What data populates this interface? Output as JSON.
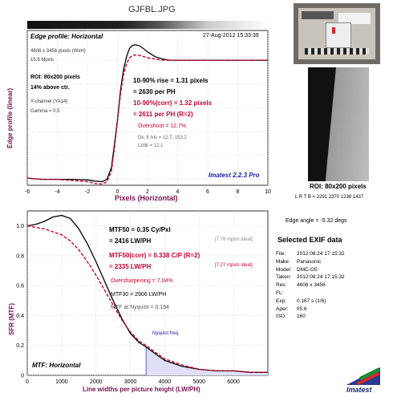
{
  "file_title": "GJFBL.JPG",
  "edge": {
    "title": "Edge profile: Horizontal",
    "timestamp": "27-Aug-2012 15:33:39",
    "dims": "4608 x 3456 pixels (WxH)",
    "mpxls": "15.9 Mpxls",
    "roi": "ROI: 80x200 pixels",
    "above": "14% above ctr.",
    "channel": "Y-channel  (YA14)",
    "gamma": "Gamma = 0.5",
    "rise1": "10-90% rise = 1.31 pixels",
    "rise2": "= 2630 per PH",
    "corr1": "10-90%(corr) = 1.32 pixels",
    "corr2": "= 2611 per PH  (R=2)",
    "overshoot": "Overshoot = 12.7%",
    "dk": "Dk, lt lvls = 12.7, 153.2",
    "ltdk": "Lt/dk = 12.1",
    "brand": "Imatest 2.2.3 Pro",
    "ylabel": "Edge profile (linear)",
    "xlabel": "Pixels (Horizontal)"
  },
  "mtf": {
    "mtf50a": "MTF50 = 0.35 Cy/Pxl",
    "mtf50b": "= 2416 LW/PH",
    "ideal1": "[7.78 mpxls ideal]",
    "corr_a": "MTF50(corr) = 0.338 C/P  (R=2)",
    "corr_b": "= 2335 LW/PH",
    "ideal2": "[7.27 mpxls ideal]",
    "oversharp": "Oversharpening = 7.04%",
    "mtf30": "MTF30 = 2906 LW/PH",
    "nyq_val": "MTF at Nyquist = 0.194",
    "nyq_label": "Nyquist freq.",
    "title": "MTF: Horizontal",
    "ylabel": "SFR (MTF)",
    "xlabel": "Line widths per picture height (LW/PH)"
  },
  "right": {
    "roi": "ROI: 80x200 pixels",
    "lrtb": "L R T B = 2291 2370  1238 1437",
    "angle": "Edge angle = -5.32 degs",
    "exif_title": "Selected EXIF data",
    "exif": [
      {
        "k": "File:",
        "v": "2012:08:24 17:15:32"
      },
      {
        "k": "Make:",
        "v": "Panasonic"
      },
      {
        "k": "Model:",
        "v": "DMC-G5"
      },
      {
        "k": "Taken:",
        "v": "2012:08:24 17:15:32"
      },
      {
        "k": "Res:",
        "v": "4608 x 3456"
      },
      {
        "k": "FL:",
        "v": ""
      },
      {
        "k": "Exp:",
        "v": "0.167 s  (1/6)"
      },
      {
        "k": "Aper:",
        "v": "f/5.6"
      },
      {
        "k": "ISO:",
        "v": "160"
      }
    ],
    "logo": "Imatest"
  },
  "chart_data": [
    {
      "type": "line",
      "title": "Edge profile: Horizontal",
      "xlabel": "Pixels (Horizontal)",
      "ylabel": "Edge profile (linear)",
      "xlim": [
        -6,
        10
      ],
      "ylim": [
        -0.05,
        1.25
      ],
      "xticks": [
        -6,
        -4,
        -2,
        0,
        2,
        4,
        6,
        8,
        10
      ],
      "grid": true,
      "series": [
        {
          "color": "#000000",
          "x": [
            -6,
            -5,
            -4,
            -3,
            -2,
            -1.5,
            -1,
            -0.7,
            -0.4,
            -0.2,
            0,
            0.2,
            0.4,
            0.6,
            0.8,
            1.0,
            1.2,
            1.5,
            2,
            2.5,
            3,
            3.5,
            4,
            5,
            6,
            7,
            8,
            9,
            10
          ],
          "y": [
            0.01,
            0.0,
            0.0,
            0.0,
            -0.005,
            -0.015,
            -0.02,
            0.0,
            0.1,
            0.3,
            0.5,
            0.75,
            0.92,
            1.03,
            1.1,
            1.125,
            1.13,
            1.12,
            1.07,
            1.03,
            1.01,
            1.0,
            1.0,
            1.0,
            1.0,
            1.0,
            1.0,
            1.0,
            1.0
          ]
        },
        {
          "color": "#cc0033",
          "x": [
            -6,
            -5,
            -4,
            -3,
            -2,
            -1.5,
            -1,
            -0.7,
            -0.4,
            -0.2,
            0,
            0.2,
            0.4,
            0.6,
            0.8,
            1.0,
            1.2,
            1.5,
            2,
            2.5,
            3,
            3.5,
            4,
            5,
            6,
            7,
            8,
            9,
            10
          ],
          "y": [
            0.01,
            0.0,
            0.0,
            -0.01,
            -0.02,
            -0.035,
            -0.04,
            -0.02,
            0.07,
            0.27,
            0.5,
            0.72,
            0.88,
            0.97,
            1.02,
            1.04,
            1.045,
            1.04,
            1.02,
            1.01,
            1.0,
            1.0,
            1.0,
            1.0,
            1.0,
            1.0,
            1.0,
            1.0,
            1.0
          ]
        }
      ]
    },
    {
      "type": "line",
      "title": "MTF: Horizontal",
      "xlabel": "Line widths per picture height (LW/PH)",
      "ylabel": "SFR (MTF)",
      "xlim": [
        0,
        7000
      ],
      "ylim": [
        0,
        1.1
      ],
      "xticks": [
        0,
        1000,
        2000,
        3000,
        4000,
        5000,
        6000
      ],
      "yticks": [
        0,
        0.2,
        0.4,
        0.6,
        0.8,
        1.0
      ],
      "nyquist": 3456,
      "grid": true,
      "series": [
        {
          "color": "#000000",
          "x": [
            0,
            250,
            500,
            750,
            1000,
            1250,
            1500,
            1750,
            2000,
            2250,
            2500,
            2750,
            3000,
            3250,
            3456,
            3750,
            4000,
            4500,
            5000,
            5500,
            6000,
            6500,
            7000
          ],
          "y": [
            1.0,
            1.01,
            1.03,
            1.06,
            1.07,
            1.05,
            0.98,
            0.88,
            0.76,
            0.63,
            0.5,
            0.38,
            0.28,
            0.22,
            0.19,
            0.14,
            0.1,
            0.06,
            0.04,
            0.03,
            0.03,
            0.02,
            0.02
          ]
        },
        {
          "color": "#cc0033",
          "x": [
            0,
            250,
            500,
            750,
            1000,
            1250,
            1500,
            1750,
            2000,
            2250,
            2500,
            2750,
            3000,
            3250,
            3456,
            3750,
            4000,
            4500,
            5000,
            5500,
            6000,
            6500,
            7000
          ],
          "y": [
            1.0,
            0.99,
            0.98,
            0.96,
            0.94,
            0.9,
            0.84,
            0.76,
            0.67,
            0.57,
            0.47,
            0.37,
            0.29,
            0.23,
            0.2,
            0.15,
            0.11,
            0.07,
            0.04,
            0.03,
            0.03,
            0.02,
            0.02
          ]
        }
      ]
    }
  ]
}
